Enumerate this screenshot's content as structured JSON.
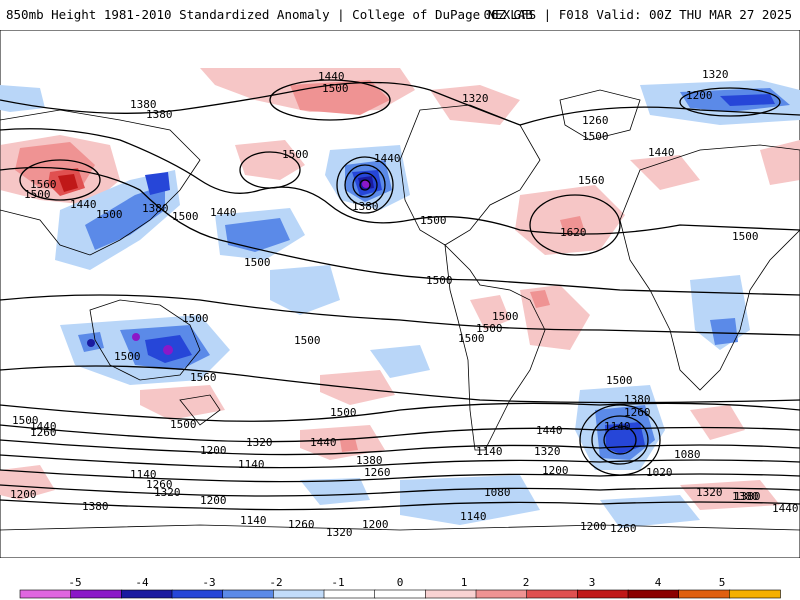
{
  "header": {
    "title": "850mb Height 1981-2010 Standardized Anomaly | College of DuPage NEXLAB",
    "run_info": "06Z GFS | F018 Valid: 00Z THU MAR 27 2025"
  },
  "map": {
    "projection": "global",
    "contour_labels": [
      "1440",
      "1500",
      "1320",
      "1380",
      "1200",
      "1380",
      "1320",
      "1260",
      "1500",
      "1440",
      "1560",
      "1500",
      "1440",
      "1380",
      "1500",
      "1500",
      "1440",
      "1500",
      "1500",
      "1620",
      "1560",
      "1500",
      "1440",
      "1380",
      "1500",
      "1500",
      "1500",
      "1500",
      "1500",
      "1500",
      "1500",
      "1500",
      "1500",
      "1440",
      "1560",
      "1500",
      "1500",
      "1500",
      "1380",
      "1260",
      "1140",
      "1020",
      "1080",
      "1440",
      "1320",
      "1260",
      "1200",
      "1140",
      "1440",
      "1380",
      "1320",
      "1260",
      "1200",
      "1140",
      "1320",
      "1380",
      "1260",
      "1200",
      "1140",
      "1080",
      "1200",
      "1140",
      "1260",
      "1320",
      "1380",
      "1200",
      "1260",
      "1140",
      "1320",
      "1200",
      "1380",
      "1440"
    ],
    "colors": {
      "land_outline": "#000000",
      "positive_anomaly": "#f6c6c6",
      "negative_anomaly": "#b9d6f8"
    }
  },
  "colorbar": {
    "tick_labels": [
      "-5",
      "-4",
      "-3",
      "-2",
      "-1",
      "0",
      "1",
      "2",
      "3",
      "4",
      "5"
    ],
    "colors": [
      "#e066e0",
      "#8b18c8",
      "#1a1aa0",
      "#2646d8",
      "#5b8ae8",
      "#c2dcfa",
      "#ffffff",
      "#ffffff",
      "#f9d2d2",
      "#ef9393",
      "#e05050",
      "#c01818",
      "#8b0000",
      "#e06010",
      "#f5b000"
    ]
  }
}
